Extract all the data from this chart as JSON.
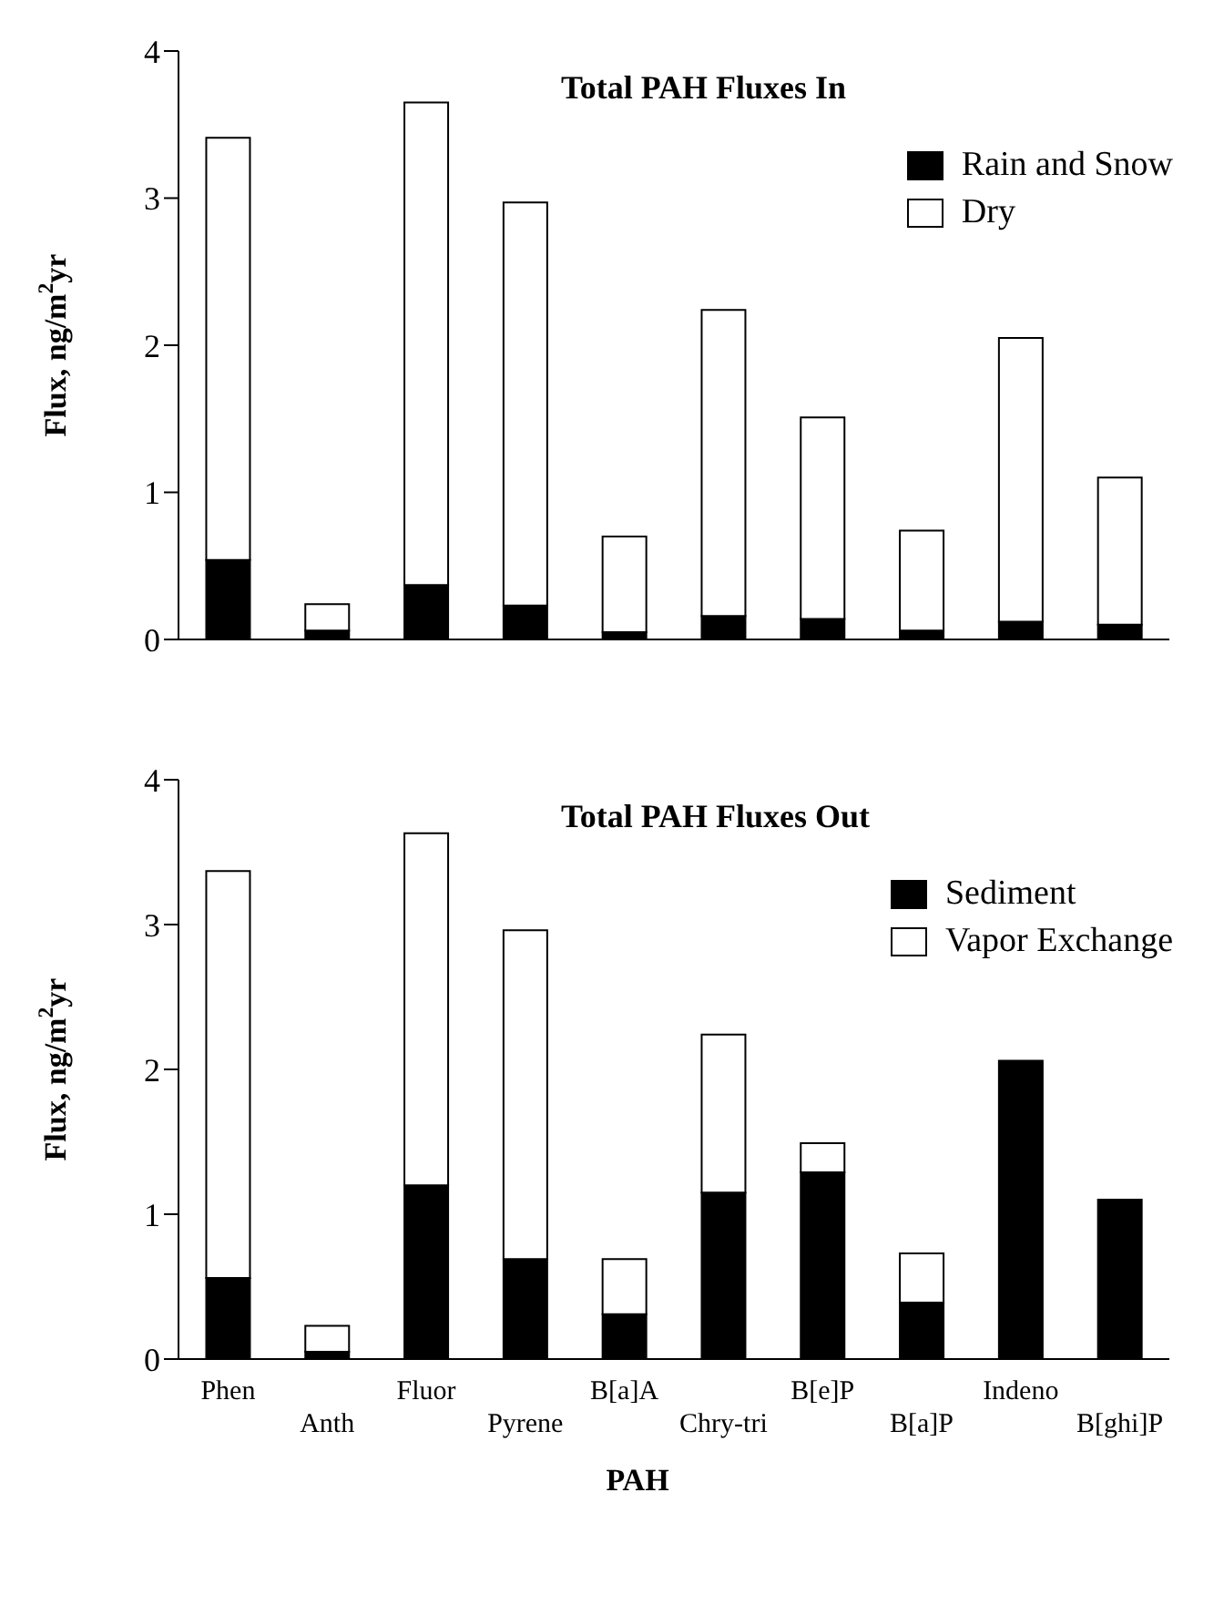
{
  "chart_data": [
    {
      "type": "bar",
      "title": "Total PAH Fluxes In",
      "ylabel": "Flux, ng/m$^{2}$yr",
      "stacked": true,
      "tick_labels": "y",
      "legend": "top right",
      "categories": [
        null,
        null,
        null,
        null,
        null,
        null,
        null,
        null,
        null,
        null
      ],
      "ylim": [
        0,
        4
      ],
      "yticks": [
        0,
        1,
        2,
        3,
        4
      ],
      "series": [
        {
          "name": "Rain and Snow",
          "color": "#000000",
          "values": [
            0.54,
            0.06,
            0.37,
            0.23,
            0.05,
            0.16,
            0.14,
            0.06,
            0.12,
            0.1
          ]
        },
        {
          "name": "Dry",
          "color": "#ffffff",
          "values": [
            2.87,
            0.18,
            3.28,
            2.74,
            0.65,
            2.08,
            1.37,
            0.68,
            1.93,
            1.0
          ]
        }
      ]
    },
    {
      "type": "bar",
      "title": "Total PAH Fluxes Out",
      "ylabel": "Flux, ng/m$^{2}$yr",
      "xlabel": "PAH",
      "stacked": true,
      "legend": "top right",
      "categories": [
        "Phen",
        "Anth",
        "Fluor",
        "Pyrene",
        "B[a]A",
        "Chry-tri",
        "B[e]P",
        "B[a]P",
        "Indeno",
        "B[ghi]P"
      ],
      "ylim": [
        0,
        4
      ],
      "yticks": [
        0,
        1,
        2,
        3,
        4
      ],
      "series": [
        {
          "name": "Sediment",
          "color": "#000000",
          "values": [
            0.56,
            0.05,
            1.2,
            0.69,
            0.31,
            1.15,
            1.29,
            0.39,
            2.06,
            1.1
          ]
        },
        {
          "name": "Vapor Exchange",
          "color": "#ffffff",
          "values": [
            2.81,
            0.18,
            2.43,
            2.27,
            0.38,
            1.09,
            0.2,
            0.34,
            0,
            0
          ]
        }
      ]
    }
  ]
}
